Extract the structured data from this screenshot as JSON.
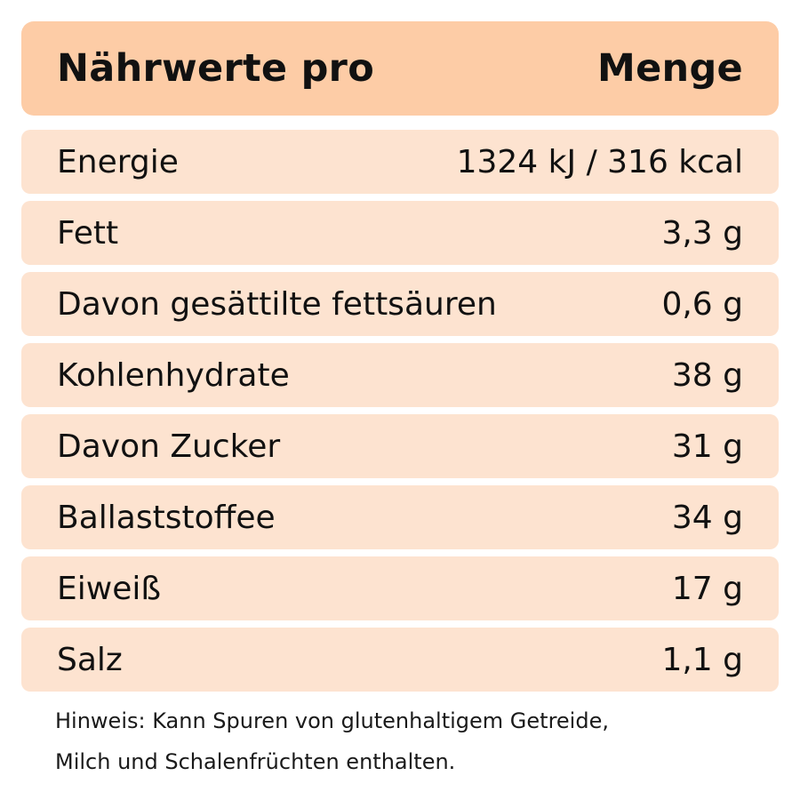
{
  "header": {
    "left": "Nährwerte pro",
    "right": "Menge"
  },
  "rows": [
    {
      "label": "Energie",
      "value": "1324 kJ / 316 kcal"
    },
    {
      "label": "Fett",
      "value": "3,3 g"
    },
    {
      "label": "Davon gesättilte fettsäuren",
      "value": "0,6 g"
    },
    {
      "label": "Kohlenhydrate",
      "value": "38 g"
    },
    {
      "label": "Davon Zucker",
      "value": "31 g"
    },
    {
      "label": "Ballaststoffee",
      "value": "34 g"
    },
    {
      "label": "Eiweiß",
      "value": "17 g"
    },
    {
      "label": "Salz",
      "value": "1,1 g"
    }
  ],
  "note": {
    "line1": "Hinweis: Kann Spuren von glutenhaltigem Getreide,",
    "line2": "Milch und Schalenfrüchten enthalten."
  },
  "colors": {
    "header_bg": "#fdcca6",
    "row_bg": "#fde3d0"
  }
}
